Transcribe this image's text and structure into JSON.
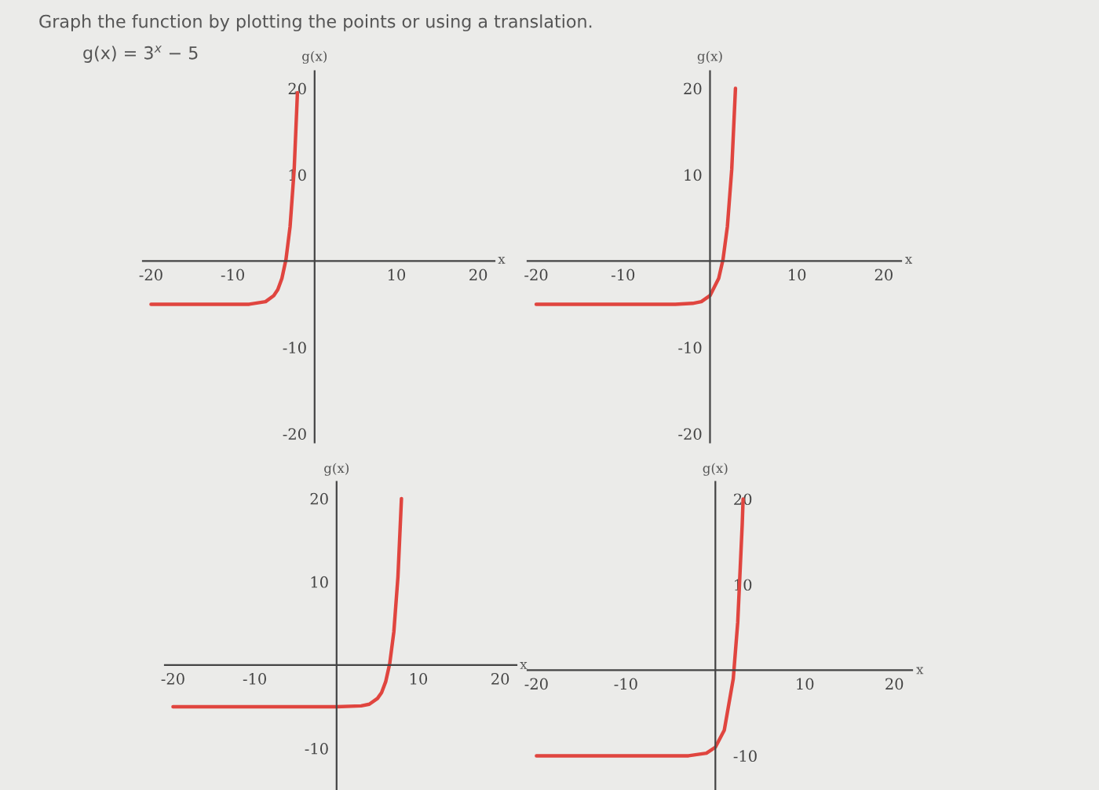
{
  "chart_data": [
    {
      "type": "line",
      "title": "Graph the function by plotting the points or using a translation.",
      "subtitle": "g(x) = 3$^{x}$ − 5",
      "xlabel": "x",
      "ylabel": "g(x)",
      "xlim": [
        -21,
        22
      ],
      "ylim": [
        -21,
        22
      ],
      "xticks": [
        -20,
        -10,
        10,
        20
      ],
      "yticks": [
        -20,
        -10,
        10,
        20
      ],
      "grid": false,
      "marker": "none",
      "line_style": "solid",
      "series": [
        {
          "color": "#e0453f",
          "x": [
            -20,
            -10,
            -8,
            -6,
            -5,
            -4.5,
            -4,
            -3.5,
            -3,
            -2.5,
            -2.1
          ],
          "values": [
            -5,
            -5,
            -5,
            -4.7,
            -4,
            -3.3,
            -2,
            0.2,
            4,
            10.6,
            19.5
          ]
        }
      ]
    },
    {
      "type": "line",
      "xlabel": "x",
      "ylabel": "g(x)",
      "xlim": [
        -21,
        22
      ],
      "ylim": [
        -21,
        22
      ],
      "xticks": [
        -20,
        -10,
        10,
        20
      ],
      "yticks": [
        -20,
        -10,
        10,
        20
      ],
      "grid": false,
      "marker": "none",
      "line_style": "solid",
      "series": [
        {
          "color": "#e0453f",
          "x": [
            -20,
            -10,
            -4,
            -2,
            -1,
            0,
            1,
            1.5,
            2,
            2.5,
            2.93
          ],
          "values": [
            -5,
            -5,
            -5,
            -4.9,
            -4.7,
            -4,
            -2,
            0.2,
            4,
            10.6,
            20
          ]
        }
      ]
    },
    {
      "type": "line",
      "xlabel": "x",
      "ylabel": "g(x)",
      "xlim": [
        -21,
        22
      ],
      "ylim": [
        -15,
        22
      ],
      "xticks": [
        -20,
        -10,
        10,
        20
      ],
      "yticks": [
        -10,
        10,
        20
      ],
      "grid": false,
      "marker": "none",
      "line_style": "solid",
      "series": [
        {
          "color": "#e0453f",
          "x": [
            -20,
            0,
            3,
            4,
            5,
            5.5,
            6,
            6.5,
            7,
            7.5,
            7.93
          ],
          "values": [
            -5,
            -5,
            -4.9,
            -4.7,
            -4,
            -3.3,
            -2,
            0.2,
            4,
            10.6,
            20
          ]
        }
      ]
    },
    {
      "type": "line",
      "xlabel": "x",
      "ylabel": "g(x)",
      "xlim": [
        -21,
        22
      ],
      "ylim": [
        -14,
        22
      ],
      "xticks": [
        -20,
        -10,
        10,
        20
      ],
      "yticks": [
        -10,
        10,
        20
      ],
      "grid": false,
      "marker": "none",
      "line_style": "solid",
      "series": [
        {
          "color": "#e0453f",
          "x": [
            -20,
            -10,
            -3,
            -1,
            0,
            1,
            2,
            2.5,
            3,
            3.1
          ],
          "values": [
            -10,
            -10,
            -10,
            -9.7,
            -9,
            -7,
            -1,
            5.6,
            17,
            20
          ]
        }
      ]
    }
  ]
}
